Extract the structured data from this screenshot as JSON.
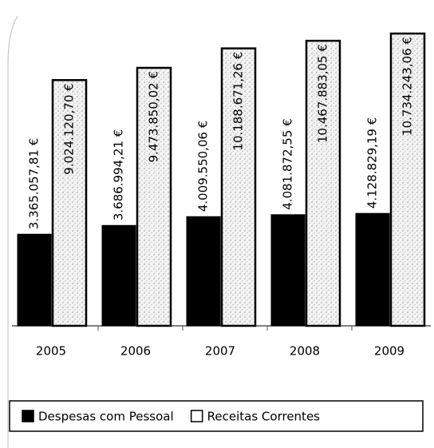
{
  "chart_data": {
    "type": "bar",
    "categories": [
      "2005",
      "2006",
      "2007",
      "2008",
      "2009"
    ],
    "series": [
      {
        "name": "Despesas com Pessoal",
        "color": "#000000",
        "values": [
          3365057.81,
          3686994.21,
          4009550.06,
          4081872.55,
          4128829.19
        ],
        "value_labels": [
          "3.365.057,81 €",
          "3.686.994,21 €",
          "4.009.550,06 €",
          "4.081.872,55 €",
          "4.128.829,19 €"
        ]
      },
      {
        "name": "Receitas Correntes",
        "color": "#ffffff",
        "values": [
          9024120.7,
          9473850.02,
          10188671.26,
          10467883.05,
          10734243.06
        ],
        "value_labels": [
          "9.024.120,70 €",
          "9.473.850,02 €",
          "10.188.671,26 €",
          "10.467.883,05 €",
          "10.734.243,06 €"
        ]
      }
    ],
    "legend": "bottom"
  }
}
